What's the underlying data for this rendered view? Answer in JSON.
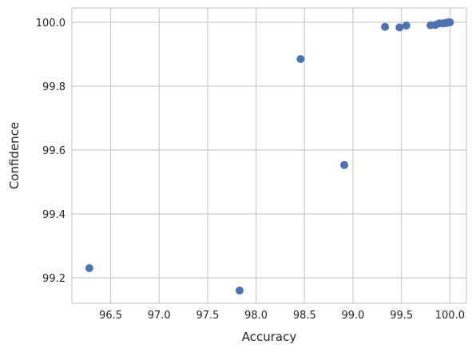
{
  "chart_data": {
    "type": "scatter",
    "title": "",
    "xlabel": "Accuracy",
    "ylabel": "Confidence",
    "xlim": [
      96.1,
      100.17
    ],
    "ylim": [
      99.12,
      100.045
    ],
    "xticks": [
      96.5,
      97.0,
      97.5,
      98.0,
      98.5,
      99.0,
      99.5,
      100.0
    ],
    "xtick_labels": [
      "96.5",
      "97.0",
      "97.5",
      "98.0",
      "98.5",
      "99.0",
      "99.5",
      "100.0"
    ],
    "yticks": [
      99.2,
      99.4,
      99.6,
      99.8,
      100.0
    ],
    "ytick_labels": [
      "99.2",
      "99.4",
      "99.6",
      "99.8",
      "100.0"
    ],
    "grid": true,
    "point_color": "#4c72b0",
    "points": [
      {
        "x": 96.28,
        "y": 99.23
      },
      {
        "x": 97.83,
        "y": 99.16
      },
      {
        "x": 98.46,
        "y": 99.885
      },
      {
        "x": 98.91,
        "y": 99.553
      },
      {
        "x": 99.33,
        "y": 99.986
      },
      {
        "x": 99.48,
        "y": 99.984
      },
      {
        "x": 99.55,
        "y": 99.99
      },
      {
        "x": 99.8,
        "y": 99.991
      },
      {
        "x": 99.85,
        "y": 99.992
      },
      {
        "x": 99.89,
        "y": 99.997
      },
      {
        "x": 99.93,
        "y": 99.997
      },
      {
        "x": 99.96,
        "y": 99.998
      },
      {
        "x": 99.98,
        "y": 100.0
      },
      {
        "x": 99.99,
        "y": 100.0
      },
      {
        "x": 100.0,
        "y": 100.0
      }
    ]
  }
}
